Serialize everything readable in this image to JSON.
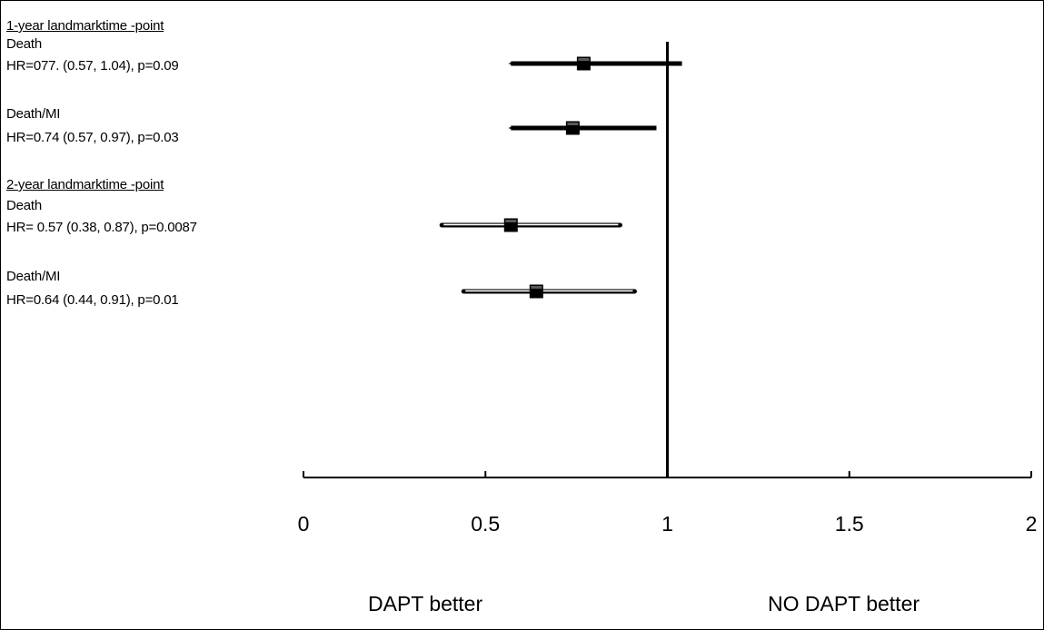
{
  "labels": {
    "group1_header": "1-year landmarktime  -point",
    "group1_death_name": "Death",
    "group1_death_hr": "HR=077. (0.57, 1.04), p=0.09",
    "group1_deathmi_name": "Death/MI",
    "group1_deathmi_hr": "HR=0.74 (0.57, 0.97), p=0.03",
    "group2_header": "2-year landmarktime  -point",
    "group2_death_name": "Death",
    "group2_death_hr": "HR= 0.57 (0.38, 0.87), p=0.0087",
    "group2_deathmi_name": "Death/MI",
    "group2_deathmi_hr": "HR=0.64 (0.44, 0.91), p=0.01"
  },
  "footer": {
    "left": "DAPT better",
    "right": "NO DAPT better"
  },
  "chart_data": {
    "type": "forest",
    "xlim": [
      0,
      2
    ],
    "xticks": [
      0,
      0.5,
      1,
      1.5,
      2
    ],
    "xtick_labels": [
      "0",
      "0.5",
      "1",
      "1.5",
      "2"
    ],
    "reference_line": 1,
    "series": [
      {
        "group": "1-year landmarktime  -point",
        "outcome": "Death",
        "hr": 0.77,
        "ci_low": 0.57,
        "ci_high": 1.04,
        "style": "thick"
      },
      {
        "group": "1-year landmarktime  -point",
        "outcome": "Death/MI",
        "hr": 0.74,
        "ci_low": 0.57,
        "ci_high": 0.97,
        "style": "thick"
      },
      {
        "group": "2-year landmarktime  -point",
        "outcome": "Death",
        "hr": 0.57,
        "ci_low": 0.38,
        "ci_high": 0.87,
        "style": "thin"
      },
      {
        "group": "2-year landmarktime  -point",
        "outcome": "Death/MI",
        "hr": 0.64,
        "ci_low": 0.44,
        "ci_high": 0.91,
        "style": "thin"
      }
    ]
  }
}
